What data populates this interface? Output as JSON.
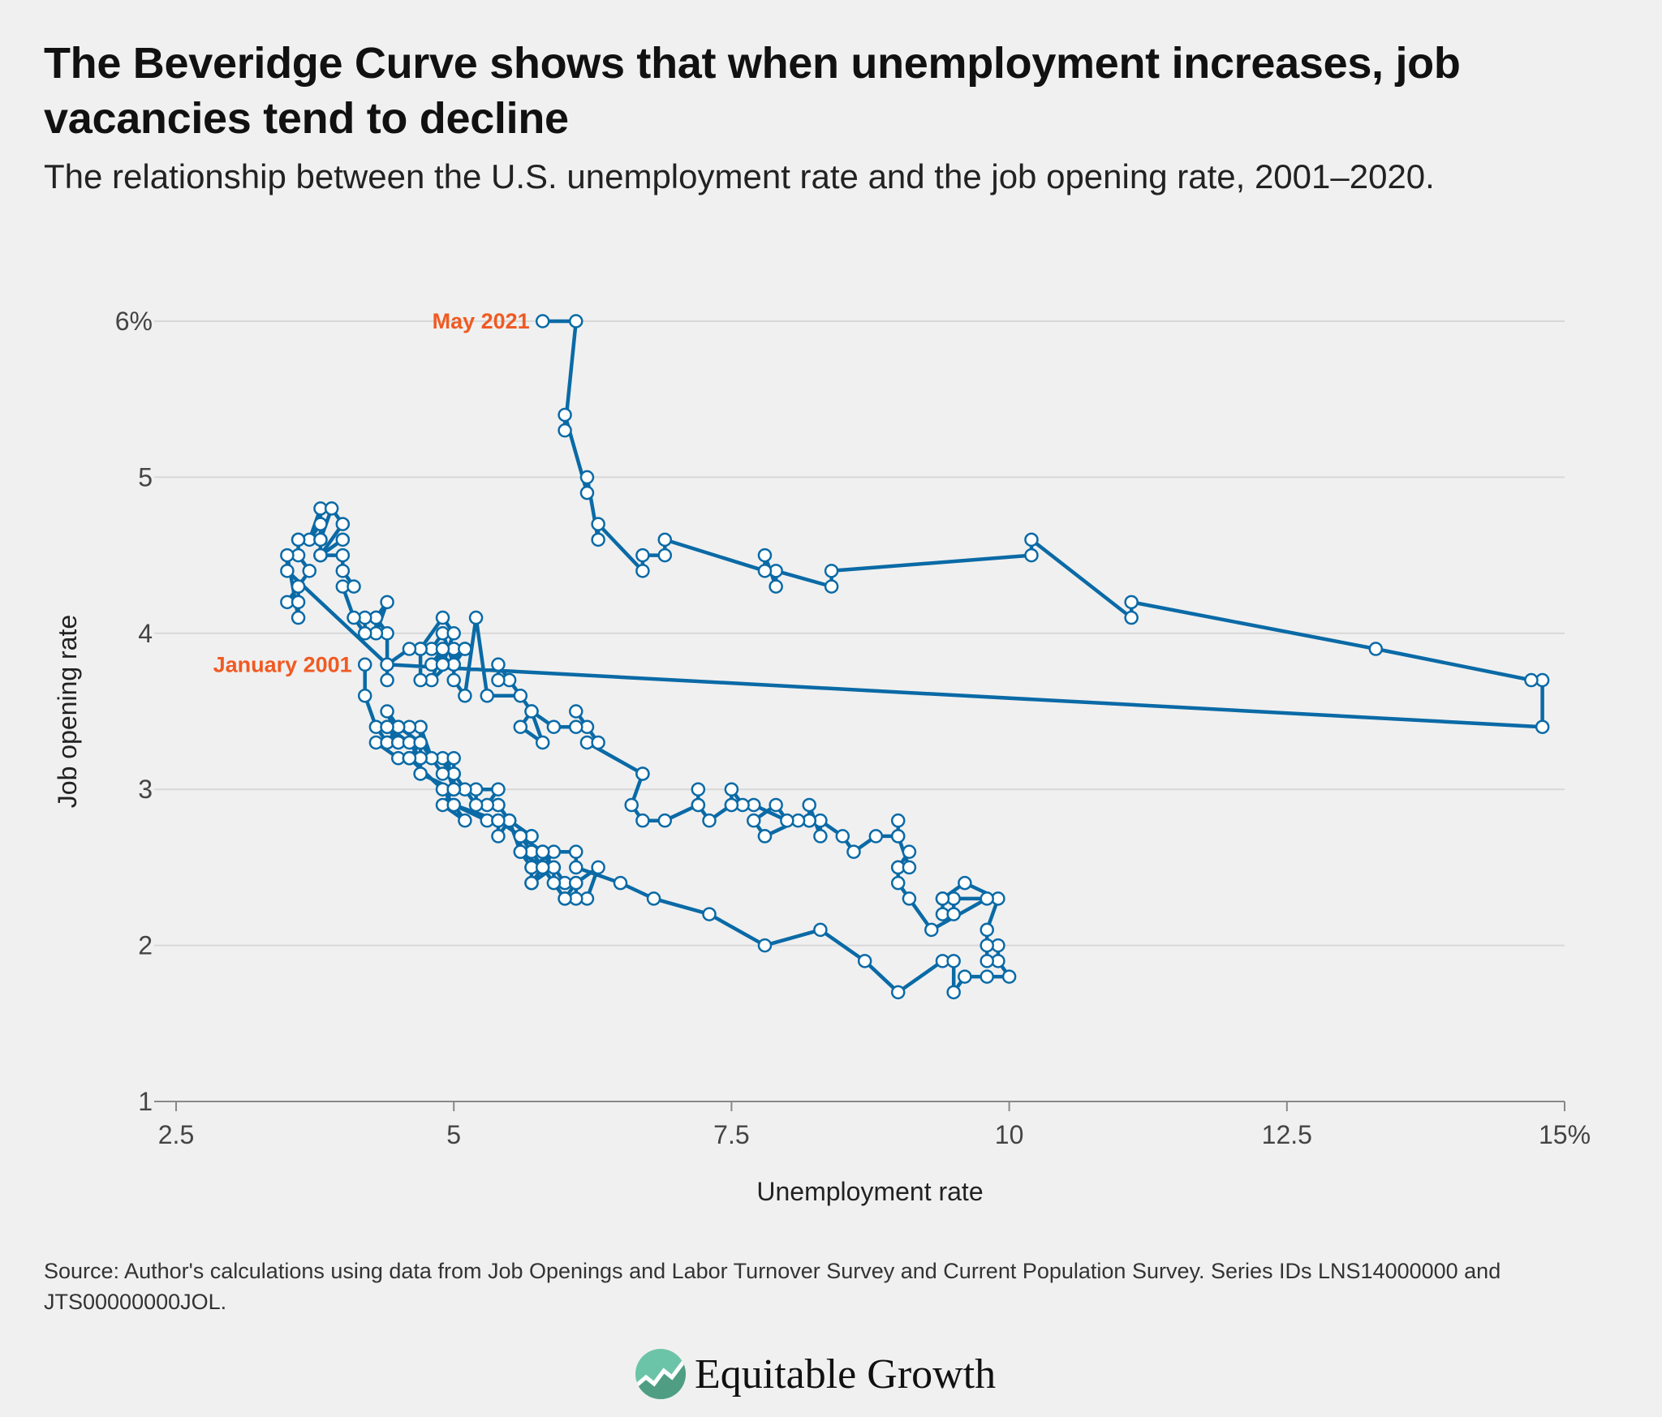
{
  "header": {
    "title": "The Beveridge Curve shows that when unemployment increases, job vacancies tend to decline",
    "subtitle": "The relationship between the U.S. unemployment rate and the job opening rate, 2001–2020."
  },
  "footer": {
    "source": "Source: Author's calculations using data from Job Openings and Labor Turnover Survey and Current Population Survey. Series IDs LNS14000000 and JTS00000000JOL.",
    "logo_text": "Equitable Growth"
  },
  "colors": {
    "line": "#0a6aa6",
    "annotation": "#f05a22",
    "grid": "#d8d8d8"
  },
  "chart_data": {
    "type": "line",
    "xlabel": "Unemployment rate",
    "ylabel": "Job opening rate",
    "xlim": [
      2.5,
      15
    ],
    "ylim": [
      1,
      6
    ],
    "xticks": [
      2.5,
      5,
      7.5,
      10,
      12.5,
      15
    ],
    "xtick_labels": [
      "2.5",
      "5",
      "7.5",
      "10",
      "12.5",
      "15%"
    ],
    "yticks": [
      1,
      2,
      3,
      4,
      5,
      6
    ],
    "ytick_labels": [
      "1",
      "2",
      "3",
      "4",
      "5",
      "6%"
    ],
    "grid": "horizontal",
    "annotations": [
      {
        "text": "January 2001",
        "x": 4.2,
        "y": 3.8
      },
      {
        "text": "May 2021",
        "x": 5.8,
        "y": 6.0
      }
    ],
    "points": [
      [
        4.2,
        3.8
      ],
      [
        4.2,
        3.6
      ],
      [
        4.3,
        3.4
      ],
      [
        4.4,
        3.3
      ],
      [
        4.3,
        3.3
      ],
      [
        4.5,
        3.2
      ],
      [
        4.6,
        3.2
      ],
      [
        4.9,
        3.0
      ],
      [
        5.0,
        2.9
      ],
      [
        5.3,
        2.8
      ],
      [
        5.5,
        2.8
      ],
      [
        5.7,
        2.7
      ],
      [
        5.7,
        2.7
      ],
      [
        5.7,
        2.6
      ],
      [
        5.7,
        2.5
      ],
      [
        5.9,
        2.6
      ],
      [
        5.8,
        2.5
      ],
      [
        5.8,
        2.6
      ],
      [
        5.8,
        2.5
      ],
      [
        5.7,
        2.4
      ],
      [
        5.7,
        2.5
      ],
      [
        5.7,
        2.4
      ],
      [
        5.9,
        2.5
      ],
      [
        6.0,
        2.4
      ],
      [
        5.8,
        2.6
      ],
      [
        5.9,
        2.5
      ],
      [
        5.9,
        2.4
      ],
      [
        6.0,
        2.3
      ],
      [
        6.1,
        2.4
      ],
      [
        6.3,
        2.5
      ],
      [
        6.2,
        2.3
      ],
      [
        6.1,
        2.3
      ],
      [
        6.1,
        2.4
      ],
      [
        6.0,
        2.3
      ],
      [
        5.8,
        2.5
      ],
      [
        5.7,
        2.4
      ],
      [
        5.7,
        2.5
      ],
      [
        5.6,
        2.6
      ],
      [
        5.8,
        2.5
      ],
      [
        5.6,
        2.7
      ],
      [
        5.6,
        2.7
      ],
      [
        5.6,
        2.6
      ],
      [
        5.5,
        2.8
      ],
      [
        5.4,
        2.7
      ],
      [
        5.4,
        2.8
      ],
      [
        5.5,
        2.8
      ],
      [
        5.4,
        2.9
      ],
      [
        5.4,
        2.9
      ],
      [
        5.3,
        2.9
      ],
      [
        5.4,
        3.0
      ],
      [
        5.2,
        3.0
      ],
      [
        5.2,
        2.9
      ],
      [
        5.1,
        3.0
      ],
      [
        5.0,
        3.1
      ],
      [
        5.0,
        3.0
      ],
      [
        4.9,
        3.2
      ],
      [
        5.0,
        3.1
      ],
      [
        5.0,
        3.0
      ],
      [
        5.0,
        3.2
      ],
      [
        4.9,
        3.1
      ],
      [
        4.7,
        3.3
      ],
      [
        4.8,
        3.2
      ],
      [
        4.7,
        3.4
      ],
      [
        4.7,
        3.3
      ],
      [
        4.6,
        3.2
      ],
      [
        4.6,
        3.2
      ],
      [
        4.7,
        3.2
      ],
      [
        4.7,
        3.3
      ],
      [
        4.5,
        3.4
      ],
      [
        4.4,
        3.3
      ],
      [
        4.5,
        3.3
      ],
      [
        4.4,
        3.4
      ],
      [
        4.6,
        3.4
      ],
      [
        4.5,
        3.4
      ],
      [
        4.4,
        3.5
      ],
      [
        4.5,
        3.3
      ],
      [
        4.4,
        3.4
      ],
      [
        4.6,
        3.3
      ],
      [
        4.7,
        3.2
      ],
      [
        4.6,
        3.2
      ],
      [
        4.7,
        3.3
      ],
      [
        4.7,
        3.1
      ],
      [
        4.7,
        3.1
      ],
      [
        5.0,
        3.0
      ],
      [
        5.0,
        3.0
      ],
      [
        4.9,
        2.9
      ],
      [
        5.1,
        2.8
      ],
      [
        5.0,
        2.9
      ],
      [
        5.4,
        2.8
      ],
      [
        5.6,
        2.7
      ],
      [
        5.8,
        2.6
      ],
      [
        6.1,
        2.6
      ],
      [
        6.1,
        2.5
      ],
      [
        6.5,
        2.4
      ],
      [
        6.8,
        2.3
      ],
      [
        7.3,
        2.2
      ],
      [
        7.8,
        2.0
      ],
      [
        8.3,
        2.1
      ],
      [
        8.7,
        1.9
      ],
      [
        9.0,
        1.7
      ],
      [
        9.4,
        1.9
      ],
      [
        9.5,
        1.9
      ],
      [
        9.5,
        1.7
      ],
      [
        9.6,
        1.8
      ],
      [
        9.8,
        1.8
      ],
      [
        10.0,
        1.8
      ],
      [
        9.9,
        1.9
      ],
      [
        9.9,
        2.0
      ],
      [
        9.8,
        2.0
      ],
      [
        9.8,
        1.9
      ],
      [
        9.8,
        2.1
      ],
      [
        9.9,
        2.3
      ],
      [
        9.6,
        2.4
      ],
      [
        9.4,
        2.3
      ],
      [
        9.4,
        2.2
      ],
      [
        9.5,
        2.2
      ],
      [
        9.5,
        2.3
      ],
      [
        9.4,
        2.3
      ],
      [
        9.8,
        2.3
      ],
      [
        9.3,
        2.1
      ],
      [
        9.1,
        2.3
      ],
      [
        9.0,
        2.4
      ],
      [
        9.0,
        2.5
      ],
      [
        9.1,
        2.6
      ],
      [
        9.0,
        2.5
      ],
      [
        9.1,
        2.5
      ],
      [
        9.0,
        2.7
      ],
      [
        9.0,
        2.8
      ],
      [
        9.0,
        2.7
      ],
      [
        8.8,
        2.7
      ],
      [
        8.6,
        2.6
      ],
      [
        8.5,
        2.7
      ],
      [
        8.3,
        2.8
      ],
      [
        8.3,
        2.7
      ],
      [
        8.2,
        2.9
      ],
      [
        8.2,
        2.8
      ],
      [
        8.2,
        2.8
      ],
      [
        8.2,
        2.8
      ],
      [
        8.2,
        2.8
      ],
      [
        8.1,
        2.8
      ],
      [
        7.8,
        2.7
      ],
      [
        7.8,
        2.7
      ],
      [
        7.7,
        2.8
      ],
      [
        7.9,
        2.9
      ],
      [
        8.0,
        2.8
      ],
      [
        7.7,
        2.9
      ],
      [
        7.5,
        2.9
      ],
      [
        7.6,
        2.9
      ],
      [
        7.5,
        3.0
      ],
      [
        7.5,
        2.9
      ],
      [
        7.3,
        2.8
      ],
      [
        7.2,
        2.9
      ],
      [
        7.2,
        3.0
      ],
      [
        7.2,
        2.9
      ],
      [
        6.9,
        2.8
      ],
      [
        6.7,
        2.8
      ],
      [
        6.6,
        2.9
      ],
      [
        6.7,
        3.1
      ],
      [
        6.7,
        3.1
      ],
      [
        6.2,
        3.3
      ],
      [
        6.3,
        3.3
      ],
      [
        6.1,
        3.5
      ],
      [
        6.2,
        3.4
      ],
      [
        6.1,
        3.4
      ],
      [
        5.9,
        3.4
      ],
      [
        5.7,
        3.5
      ],
      [
        5.8,
        3.3
      ],
      [
        5.6,
        3.4
      ],
      [
        5.7,
        3.5
      ],
      [
        5.5,
        3.7
      ],
      [
        5.4,
        3.7
      ],
      [
        5.4,
        3.8
      ],
      [
        5.6,
        3.6
      ],
      [
        5.3,
        3.6
      ],
      [
        5.2,
        4.1
      ],
      [
        5.1,
        3.6
      ],
      [
        5.0,
        3.7
      ],
      [
        5.0,
        3.9
      ],
      [
        5.1,
        3.9
      ],
      [
        5.0,
        3.8
      ],
      [
        4.8,
        3.9
      ],
      [
        4.9,
        4.0
      ],
      [
        5.0,
        3.8
      ],
      [
        5.1,
        3.9
      ],
      [
        4.8,
        3.7
      ],
      [
        4.9,
        3.9
      ],
      [
        4.8,
        3.8
      ],
      [
        4.9,
        3.8
      ],
      [
        5.0,
        4.0
      ],
      [
        4.9,
        4.1
      ],
      [
        4.7,
        3.9
      ],
      [
        4.7,
        3.7
      ],
      [
        4.7,
        3.9
      ],
      [
        4.6,
        3.9
      ],
      [
        4.4,
        3.8
      ],
      [
        4.4,
        3.7
      ],
      [
        4.4,
        4.0
      ],
      [
        4.3,
        4.1
      ],
      [
        4.3,
        4.0
      ],
      [
        4.4,
        4.2
      ],
      [
        4.3,
        4.1
      ],
      [
        4.2,
        4.1
      ],
      [
        4.2,
        4.0
      ],
      [
        4.1,
        4.1
      ],
      [
        4.0,
        4.3
      ],
      [
        4.1,
        4.3
      ],
      [
        4.0,
        4.4
      ],
      [
        4.0,
        4.5
      ],
      [
        3.8,
        4.5
      ],
      [
        4.0,
        4.6
      ],
      [
        3.8,
        4.5
      ],
      [
        3.8,
        4.7
      ],
      [
        3.7,
        4.6
      ],
      [
        3.8,
        4.8
      ],
      [
        3.8,
        4.6
      ],
      [
        3.9,
        4.8
      ],
      [
        4.0,
        4.7
      ],
      [
        3.8,
        4.5
      ],
      [
        3.8,
        4.6
      ],
      [
        3.6,
        4.6
      ],
      [
        3.6,
        4.6
      ],
      [
        3.6,
        4.5
      ],
      [
        3.7,
        4.4
      ],
      [
        3.6,
        4.3
      ],
      [
        3.5,
        4.2
      ],
      [
        3.6,
        4.3
      ],
      [
        3.6,
        4.2
      ],
      [
        3.6,
        4.1
      ],
      [
        3.5,
        4.5
      ],
      [
        3.5,
        4.4
      ],
      [
        4.4,
        3.8
      ],
      [
        14.8,
        3.4
      ],
      [
        14.8,
        3.7
      ],
      [
        14.7,
        3.7
      ],
      [
        13.3,
        3.9
      ],
      [
        11.1,
        4.2
      ],
      [
        11.1,
        4.1
      ],
      [
        10.2,
        4.6
      ],
      [
        10.2,
        4.5
      ],
      [
        8.4,
        4.4
      ],
      [
        8.4,
        4.3
      ],
      [
        7.9,
        4.4
      ],
      [
        7.9,
        4.3
      ],
      [
        7.8,
        4.5
      ],
      [
        7.8,
        4.4
      ],
      [
        6.9,
        4.6
      ],
      [
        6.9,
        4.5
      ],
      [
        6.7,
        4.5
      ],
      [
        6.7,
        4.4
      ],
      [
        6.3,
        4.7
      ],
      [
        6.3,
        4.6
      ],
      [
        6.2,
        5.0
      ],
      [
        6.2,
        4.9
      ],
      [
        6.0,
        5.4
      ],
      [
        6.0,
        5.3
      ],
      [
        6.1,
        6.0
      ],
      [
        5.8,
        6.0
      ]
    ]
  }
}
